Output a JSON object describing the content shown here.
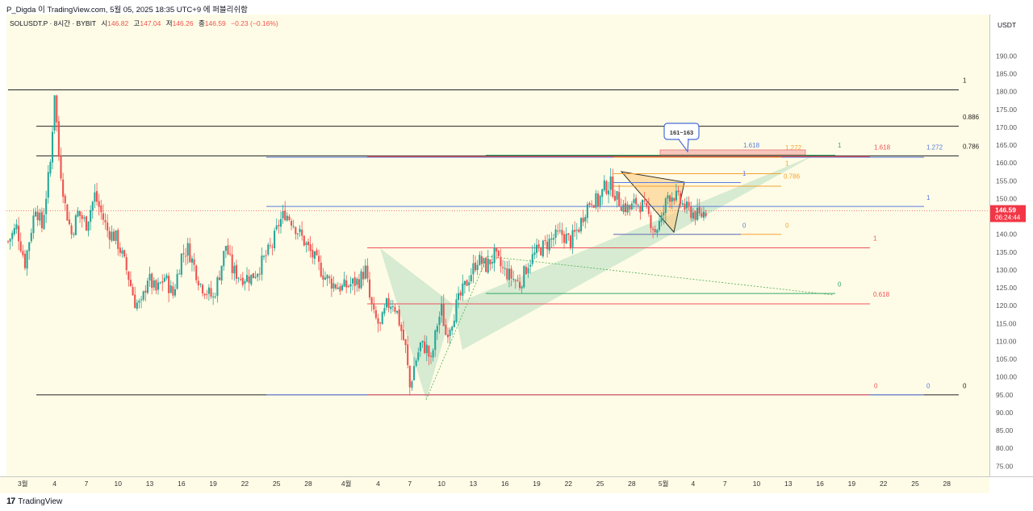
{
  "header": {
    "publish_line": "P_Digda 이 TradingView.com, 5월 05, 2025 18:35 UTC+9 에 퍼블리쉬함"
  },
  "legend": {
    "symbol": "SOLUSDT.P · 8시간 · BYBIT",
    "o_label": "시",
    "o_value": "146.82",
    "h_label": "고",
    "h_value": "147.04",
    "l_label": "저",
    "l_value": "146.26",
    "c_label": "종",
    "c_value": "146.59",
    "change": "−0.23 (−0.16%)"
  },
  "price_axis": {
    "currency": "USDT",
    "last_price": "146.59",
    "countdown": "06:24:44"
  },
  "footer": {
    "brand_mark": "17",
    "brand": "TradingView"
  },
  "callout_text": "161~163",
  "colors": {
    "chart_bg": "#fefce6",
    "up": "#26a69a",
    "down": "#ef5350",
    "last_price_tag": "#f23645",
    "pattern_fill": "#c8e6c9",
    "triangle_fill": "#ffcc80",
    "fib_blue": "#5b7be0",
    "fib_orange": "#f7a130",
    "fib_red": "#f0505a",
    "fib_green": "#37a866"
  },
  "chart_data": {
    "type": "candlestick",
    "title": "SOLUSDT.P · 8시간 · BYBIT",
    "ylim": [
      73.5,
      198
    ],
    "y_ticks": [
      75,
      80,
      85,
      90,
      95,
      100,
      105,
      110,
      115,
      120,
      125,
      130,
      135,
      140,
      145,
      150,
      155,
      160,
      165,
      170,
      175,
      180,
      185,
      190
    ],
    "x_ticks": [
      {
        "label": "3월",
        "i": 7
      },
      {
        "label": "4",
        "i": 22
      },
      {
        "label": "7",
        "i": 37
      },
      {
        "label": "10",
        "i": 52
      },
      {
        "label": "13",
        "i": 67
      },
      {
        "label": "16",
        "i": 82
      },
      {
        "label": "19",
        "i": 97
      },
      {
        "label": "22",
        "i": 112
      },
      {
        "label": "25",
        "i": 127
      },
      {
        "label": "28",
        "i": 142
      },
      {
        "label": "4월",
        "i": 160
      },
      {
        "label": "4",
        "i": 175
      },
      {
        "label": "7",
        "i": 190
      },
      {
        "label": "10",
        "i": 205
      },
      {
        "label": "13",
        "i": 220
      },
      {
        "label": "16",
        "i": 235
      },
      {
        "label": "19",
        "i": 250
      },
      {
        "label": "22",
        "i": 265
      },
      {
        "label": "25",
        "i": 280
      },
      {
        "label": "28",
        "i": 295
      },
      {
        "label": "5월",
        "i": 310
      },
      {
        "label": "4",
        "i": 324
      },
      {
        "label": "7",
        "i": 339
      },
      {
        "label": "10",
        "i": 354
      },
      {
        "label": "13",
        "i": 369
      },
      {
        "label": "16",
        "i": 384
      },
      {
        "label": "19",
        "i": 399
      },
      {
        "label": "22",
        "i": 414
      },
      {
        "label": "25",
        "i": 429
      },
      {
        "label": "28",
        "i": 444
      }
    ],
    "anchors": [
      {
        "i": 0,
        "p": 138
      },
      {
        "i": 4,
        "p": 142
      },
      {
        "i": 8,
        "p": 132
      },
      {
        "i": 13,
        "p": 148
      },
      {
        "i": 16,
        "p": 142
      },
      {
        "i": 20,
        "p": 160
      },
      {
        "i": 22,
        "p": 180
      },
      {
        "i": 24,
        "p": 162
      },
      {
        "i": 27,
        "p": 148
      },
      {
        "i": 30,
        "p": 140
      },
      {
        "i": 33,
        "p": 146
      },
      {
        "i": 37,
        "p": 143
      },
      {
        "i": 41,
        "p": 151
      },
      {
        "i": 44,
        "p": 146
      },
      {
        "i": 47,
        "p": 141
      },
      {
        "i": 51,
        "p": 139
      },
      {
        "i": 54,
        "p": 134
      },
      {
        "i": 57,
        "p": 128
      },
      {
        "i": 60,
        "p": 121
      },
      {
        "i": 63,
        "p": 120
      },
      {
        "i": 66,
        "p": 128
      },
      {
        "i": 70,
        "p": 124
      },
      {
        "i": 74,
        "p": 128
      },
      {
        "i": 78,
        "p": 123
      },
      {
        "i": 82,
        "p": 134
      },
      {
        "i": 85,
        "p": 136
      },
      {
        "i": 88,
        "p": 131
      },
      {
        "i": 91,
        "p": 126
      },
      {
        "i": 94,
        "p": 124
      },
      {
        "i": 97,
        "p": 122
      },
      {
        "i": 100,
        "p": 129
      },
      {
        "i": 103,
        "p": 137
      },
      {
        "i": 106,
        "p": 130
      },
      {
        "i": 110,
        "p": 128
      },
      {
        "i": 115,
        "p": 128
      },
      {
        "i": 118,
        "p": 130
      },
      {
        "i": 121,
        "p": 133
      },
      {
        "i": 125,
        "p": 137
      },
      {
        "i": 128,
        "p": 143
      },
      {
        "i": 131,
        "p": 146
      },
      {
        "i": 134,
        "p": 144
      },
      {
        "i": 138,
        "p": 140
      },
      {
        "i": 142,
        "p": 136
      },
      {
        "i": 146,
        "p": 132
      },
      {
        "i": 150,
        "p": 128
      },
      {
        "i": 154,
        "p": 126
      },
      {
        "i": 158,
        "p": 125
      },
      {
        "i": 162,
        "p": 126
      },
      {
        "i": 166,
        "p": 127
      },
      {
        "i": 169,
        "p": 130
      },
      {
        "i": 171,
        "p": 122
      },
      {
        "i": 173,
        "p": 117
      },
      {
        "i": 176,
        "p": 114
      },
      {
        "i": 179,
        "p": 120
      },
      {
        "i": 182,
        "p": 121
      },
      {
        "i": 184,
        "p": 118
      },
      {
        "i": 186,
        "p": 113
      },
      {
        "i": 188,
        "p": 108
      },
      {
        "i": 190,
        "p": 97
      },
      {
        "i": 192,
        "p": 103
      },
      {
        "i": 195,
        "p": 109
      },
      {
        "i": 198,
        "p": 108
      },
      {
        "i": 200,
        "p": 104
      },
      {
        "i": 203,
        "p": 115
      },
      {
        "i": 205,
        "p": 119
      },
      {
        "i": 207,
        "p": 112
      },
      {
        "i": 210,
        "p": 116
      },
      {
        "i": 212,
        "p": 120
      },
      {
        "i": 215,
        "p": 124
      },
      {
        "i": 218,
        "p": 128
      },
      {
        "i": 222,
        "p": 133
      },
      {
        "i": 226,
        "p": 131
      },
      {
        "i": 230,
        "p": 134
      },
      {
        "i": 234,
        "p": 130
      },
      {
        "i": 238,
        "p": 128
      },
      {
        "i": 242,
        "p": 126
      },
      {
        "i": 246,
        "p": 132
      },
      {
        "i": 250,
        "p": 135
      },
      {
        "i": 254,
        "p": 137
      },
      {
        "i": 258,
        "p": 139
      },
      {
        "i": 262,
        "p": 140
      },
      {
        "i": 266,
        "p": 138
      },
      {
        "i": 270,
        "p": 142
      },
      {
        "i": 273,
        "p": 147
      },
      {
        "i": 276,
        "p": 150
      },
      {
        "i": 279,
        "p": 149
      },
      {
        "i": 282,
        "p": 153
      },
      {
        "i": 285,
        "p": 154
      },
      {
        "i": 288,
        "p": 150
      },
      {
        "i": 291,
        "p": 148
      },
      {
        "i": 294,
        "p": 147
      },
      {
        "i": 297,
        "p": 149
      },
      {
        "i": 300,
        "p": 148
      },
      {
        "i": 303,
        "p": 145
      },
      {
        "i": 306,
        "p": 141
      },
      {
        "i": 309,
        "p": 144
      },
      {
        "i": 312,
        "p": 151
      },
      {
        "i": 315,
        "p": 151
      },
      {
        "i": 318,
        "p": 149
      },
      {
        "i": 321,
        "p": 147
      },
      {
        "i": 324,
        "p": 146
      },
      {
        "i": 327,
        "p": 145
      },
      {
        "i": 330,
        "p": 146.6
      }
    ],
    "indicator_lines": [
      {
        "x1": 10,
        "x2": 1188,
        "price": 180.5,
        "color": "#222222"
      },
      {
        "x1": 45,
        "x2": 1188,
        "price": 170.3,
        "color": "#222222"
      },
      {
        "x1": 45,
        "x2": 1188,
        "price": 162.0,
        "color": "#222222"
      },
      {
        "x1": 45,
        "x2": 1188,
        "price": 95.0,
        "color": "#222222"
      },
      {
        "x1": 330,
        "x2": 1145,
        "price": 161.6,
        "color": "#5b7be0"
      },
      {
        "x1": 330,
        "x2": 1145,
        "price": 147.8,
        "color": "#5b7be0"
      },
      {
        "x1": 330,
        "x2": 1145,
        "price": 95.0,
        "color": "#5b7be0"
      },
      {
        "x1": 455,
        "x2": 1078,
        "price": 161.8,
        "color": "#f0505a"
      },
      {
        "x1": 455,
        "x2": 1078,
        "price": 136.2,
        "color": "#f0505a"
      },
      {
        "x1": 455,
        "x2": 1078,
        "price": 120.5,
        "color": "#f0505a"
      },
      {
        "x1": 455,
        "x2": 1078,
        "price": 95.0,
        "color": "#f0505a"
      },
      {
        "x1": 602,
        "x2": 1035,
        "price": 162.2,
        "color": "#37a866"
      },
      {
        "x1": 602,
        "x2": 1035,
        "price": 123.4,
        "color": "#37a866"
      },
      {
        "x1": 760,
        "x2": 968,
        "price": 161.6,
        "color": "#f7a130"
      },
      {
        "x1": 760,
        "x2": 968,
        "price": 157.0,
        "color": "#f7a130"
      },
      {
        "x1": 760,
        "x2": 968,
        "price": 153.5,
        "color": "#f7a130"
      },
      {
        "x1": 760,
        "x2": 968,
        "price": 140.0,
        "color": "#f7a130"
      },
      {
        "x1": 760,
        "x2": 918,
        "price": 154.5,
        "color": "#5b7be0"
      },
      {
        "x1": 760,
        "x2": 918,
        "price": 140.0,
        "color": "#5b7be0"
      }
    ],
    "level_labels": [
      {
        "text": "1",
        "px": 1193,
        "price": 182.5,
        "color": "#222222"
      },
      {
        "text": "0.886",
        "px": 1193,
        "price": 172.2,
        "color": "#222222"
      },
      {
        "text": "0.786",
        "px": 1193,
        "price": 164.0,
        "color": "#222222"
      },
      {
        "text": "0",
        "px": 1193,
        "price": 96.9,
        "color": "#222222"
      },
      {
        "text": "1.618",
        "px": 921,
        "price": 164.3,
        "color": "#5b7be0"
      },
      {
        "text": "1.272",
        "px": 973,
        "price": 163.6,
        "color": "#f7a130"
      },
      {
        "text": "1",
        "px": 1038,
        "price": 164.3,
        "color": "#37a866"
      },
      {
        "text": "1.618",
        "px": 1083,
        "price": 163.8,
        "color": "#f0505a"
      },
      {
        "text": "1.272",
        "px": 1148,
        "price": 163.8,
        "color": "#5b7be0"
      },
      {
        "text": "1",
        "px": 973,
        "price": 159.2,
        "color": "#f7a130"
      },
      {
        "text": "1",
        "px": 920,
        "price": 156.4,
        "color": "#5b7be0"
      },
      {
        "text": "0.786",
        "px": 971,
        "price": 155.6,
        "color": "#f7a130"
      },
      {
        "text": "1",
        "px": 1148,
        "price": 149.7,
        "color": "#5b7be0"
      },
      {
        "text": "0",
        "px": 920,
        "price": 141.9,
        "color": "#5b7be0"
      },
      {
        "text": "0",
        "px": 973,
        "price": 141.9,
        "color": "#f7a130"
      },
      {
        "text": "1",
        "px": 1082,
        "price": 138.2,
        "color": "#f0505a"
      },
      {
        "text": "0",
        "px": 1038,
        "price": 125.4,
        "color": "#37a866"
      },
      {
        "text": "0.618",
        "px": 1082,
        "price": 122.5,
        "color": "#f0505a"
      },
      {
        "text": "0",
        "px": 1083,
        "price": 96.9,
        "color": "#f0505a"
      },
      {
        "text": "0",
        "px": 1148,
        "price": 96.9,
        "color": "#5b7be0"
      }
    ]
  }
}
